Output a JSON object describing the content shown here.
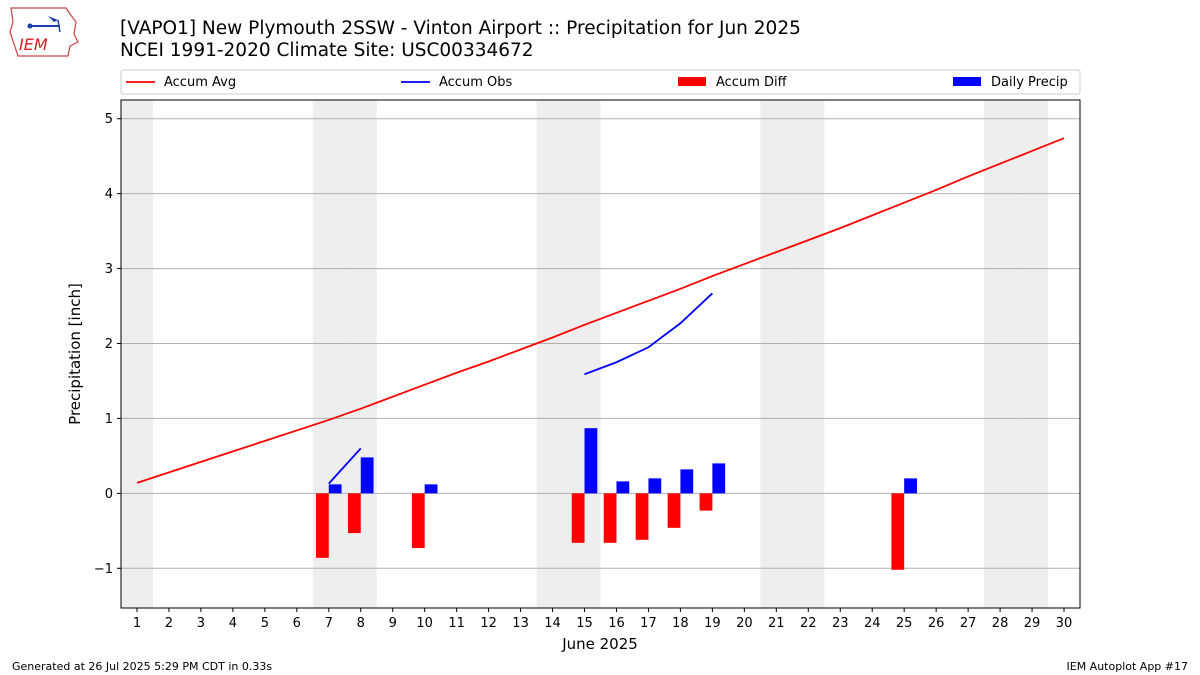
{
  "header": {
    "title_line1": "[VAPO1] New Plymouth 2SSW - Vinton Airport :: Precipitation for Jun 2025",
    "title_line2": "NCEI 1991-2020 Climate Site: USC00334672"
  },
  "logo": {
    "text": "IEM"
  },
  "footer": {
    "generated": "Generated at 26 Jul 2025 5:29 PM CDT in 0.33s",
    "app": "IEM Autoplot App #17"
  },
  "colors": {
    "accum_avg": "#ff0000",
    "accum_obs": "#0000ff",
    "accum_diff": "#ff0000",
    "daily_precip": "#0000ff",
    "weekend_band": "#eeeeee",
    "grid": "#b0b0b0"
  },
  "chart_data": {
    "type": "bar",
    "xlabel": "June 2025",
    "ylabel": "Precipitation [inch]",
    "xlim": [
      0.5,
      30.5
    ],
    "ylim": [
      -1.53,
      5.25
    ],
    "x_ticks": [
      1,
      2,
      3,
      4,
      5,
      6,
      7,
      8,
      9,
      10,
      11,
      12,
      13,
      14,
      15,
      16,
      17,
      18,
      19,
      20,
      21,
      22,
      23,
      24,
      25,
      26,
      27,
      28,
      29,
      30
    ],
    "y_ticks": [
      -1,
      0,
      1,
      2,
      3,
      4,
      5
    ],
    "grid": "horizontal",
    "legend_position": "top",
    "weekend_days": [
      1,
      7,
      8,
      14,
      15,
      21,
      22,
      28,
      29
    ],
    "series": [
      {
        "name": "Accum Avg",
        "kind": "line",
        "x": [
          1,
          2,
          3,
          4,
          5,
          6,
          7,
          8,
          9,
          10,
          11,
          12,
          13,
          14,
          15,
          16,
          17,
          18,
          19,
          20,
          21,
          22,
          23,
          24,
          25,
          26,
          27,
          28,
          29,
          30
        ],
        "y": [
          0.14,
          0.28,
          0.42,
          0.56,
          0.7,
          0.84,
          0.98,
          1.13,
          1.29,
          1.45,
          1.61,
          1.76,
          1.92,
          2.08,
          2.25,
          2.41,
          2.57,
          2.73,
          2.9,
          3.06,
          3.22,
          3.38,
          3.54,
          3.71,
          3.88,
          4.05,
          4.23,
          4.4,
          4.57,
          4.74
        ]
      },
      {
        "name": "Accum Obs",
        "kind": "line",
        "segments": [
          {
            "x": [
              7,
              8
            ],
            "y": [
              0.13,
              0.6
            ]
          },
          {
            "x": [
              15,
              16,
              17,
              18,
              19
            ],
            "y": [
              1.59,
              1.75,
              1.95,
              2.27,
              2.67
            ]
          }
        ]
      },
      {
        "name": "Accum Diff",
        "kind": "bar",
        "x": [
          7,
          8,
          10,
          15,
          16,
          17,
          18,
          19,
          25
        ],
        "y": [
          -0.86,
          -0.53,
          -0.73,
          -0.66,
          -0.66,
          -0.62,
          -0.46,
          -0.23,
          -1.02
        ]
      },
      {
        "name": "Daily Precip",
        "kind": "bar",
        "x": [
          7,
          8,
          10,
          15,
          16,
          17,
          18,
          19,
          25
        ],
        "y": [
          0.12,
          0.48,
          0.12,
          0.87,
          0.16,
          0.2,
          0.32,
          0.4,
          0.2
        ]
      }
    ]
  }
}
